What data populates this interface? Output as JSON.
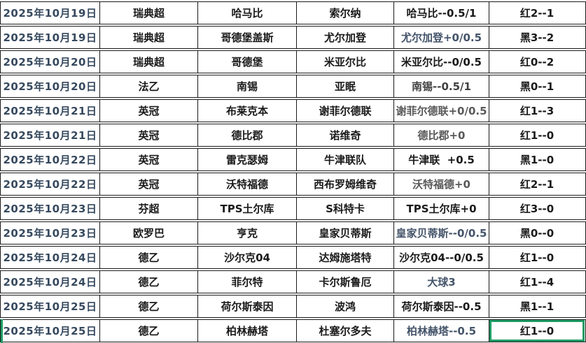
{
  "app": {
    "description": "spreadsheet table of football match handicap picks and results"
  },
  "colors": {
    "date_text": "#36495E",
    "body_text": "#1a1a1a",
    "grid_border": "#1a1a1a",
    "selection_green": "#1F9C66",
    "marker_green": "#168a3e"
  },
  "columns": [
    "date",
    "league",
    "home",
    "away",
    "pick",
    "result"
  ],
  "rows": [
    {
      "date": "2025年10月19日",
      "league": "瑞典超",
      "home": "哈马比",
      "away": "索尔纳",
      "pick": "哈马比--0.5/1",
      "result": "红2--1",
      "pick_color": "#1a1a1a",
      "markers": [
        "league",
        "home"
      ],
      "selected": false,
      "left_bar": false
    },
    {
      "date": "2025年10月19日",
      "league": "瑞典超",
      "home": "哥德堡盖斯",
      "away": "尤尔加登",
      "pick": "尤尔加登+0/0.5",
      "result": "黑3--2",
      "pick_color": "#44546A",
      "markers": [
        "league"
      ],
      "selected": false,
      "left_bar": false
    },
    {
      "date": "2025年10月20日",
      "league": "瑞典超",
      "home": "哥德堡",
      "away": "米亚尔比",
      "pick": "米亚尔比--0/0.5",
      "result": "红0--2",
      "pick_color": "#1a1a1a",
      "markers": [
        "league"
      ],
      "selected": false,
      "left_bar": false
    },
    {
      "date": "2025年10月20日",
      "league": "法乙",
      "home": "南锡",
      "away": "亚眠",
      "pick": "南锡--0.5/1",
      "result": "黑0--1",
      "pick_color": "#404040",
      "markers": [],
      "selected": false,
      "left_bar": false
    },
    {
      "date": "2025年10月21日",
      "league": "英冠",
      "home": "布莱克本",
      "away": "谢菲尔德联",
      "pick": "谢菲尔德联+0/0.5",
      "result": "红1--3",
      "pick_color": "#595959",
      "markers": [
        "league"
      ],
      "selected": false,
      "left_bar": false
    },
    {
      "date": "2025年10月21日",
      "league": "英冠",
      "home": "德比郡",
      "away": "诺维奇",
      "pick": "德比郡+0",
      "result": "红1--0",
      "pick_color": "#595959",
      "markers": [],
      "selected": false,
      "left_bar": false
    },
    {
      "date": "2025年10月22日",
      "league": "英冠",
      "home": "雷克瑟姆",
      "away": "牛津联队",
      "pick": "牛津联  +0.5",
      "result": "黑1--0",
      "pick_color": "#1a1a1a",
      "markers": [
        "pick"
      ],
      "selected": false,
      "left_bar": false
    },
    {
      "date": "2025年10月22日",
      "league": "英冠",
      "home": "沃特福德",
      "away": "西布罗姆维奇",
      "pick": "沃特福德+0",
      "result": "红2--1",
      "pick_color": "#595959",
      "markers": [],
      "selected": false,
      "left_bar": false
    },
    {
      "date": "2025年10月23日",
      "league": "芬超",
      "home": "TPS土尔库",
      "away": "S科特卡",
      "pick": "TPS土尔库+0",
      "result": "红3--0",
      "pick_color": "#1a1a1a",
      "markers": [],
      "selected": false,
      "left_bar": false
    },
    {
      "date": "2025年10月23日",
      "league": "欧罗巴",
      "home": "亨克",
      "away": "皇家贝蒂斯",
      "pick": "皇家贝蒂斯--0/0.5",
      "result": "黑0--0",
      "pick_color": "#44546A",
      "markers": [
        "league"
      ],
      "selected": false,
      "left_bar": false
    },
    {
      "date": "2025年10月24日",
      "league": "德乙",
      "home": "沙尔克04",
      "away": "达姆施塔特",
      "pick": "沙尔克04--0/0.5",
      "result": "红1--0",
      "pick_color": "#1a1a1a",
      "markers": [],
      "selected": false,
      "left_bar": false
    },
    {
      "date": "2025年10月24日",
      "league": "德乙",
      "home": "菲尔特",
      "away": "卡尔斯鲁厄",
      "pick": "大球3",
      "result": "红1--4",
      "pick_color": "#44546A",
      "markers": [
        "home",
        "away"
      ],
      "selected": false,
      "left_bar": false
    },
    {
      "date": "2025年10月25日",
      "league": "德乙",
      "home": "荷尔斯泰因",
      "away": "波鸿",
      "pick": "荷尔斯泰因--0.5",
      "result": "黑1--1",
      "pick_color": "#1a1a1a",
      "markers": [],
      "selected": false,
      "left_bar": false
    },
    {
      "date": "2025年10月25日",
      "league": "德乙",
      "home": "柏林赫塔",
      "away": "杜塞尔多夫",
      "pick": "柏林赫塔--0.5",
      "result": "红1--0",
      "pick_color": "#44546A",
      "markers": [],
      "selected": true,
      "left_bar": true
    }
  ]
}
